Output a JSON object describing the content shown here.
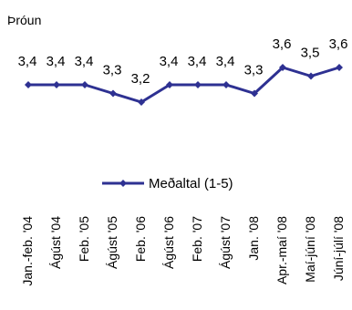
{
  "chart_data": {
    "type": "line",
    "title": "Þróun",
    "categories": [
      "Jan.-feb. '04",
      "Ágúst '04",
      "Feb. '05",
      "Ágúst '05",
      "Feb. '06",
      "Ágúst '06",
      "Feb. '07",
      "Ágúst '07",
      "Jan. '08",
      "Apr.-maí '08",
      "Maí-júní '08",
      "Júní-júlí '08"
    ],
    "series": [
      {
        "name": "Meðaltal (1-5)",
        "values": [
          3.4,
          3.4,
          3.4,
          3.3,
          3.2,
          3.4,
          3.4,
          3.4,
          3.3,
          3.6,
          3.5,
          3.6
        ],
        "labels": [
          "3,4",
          "3,4",
          "3,4",
          "3,3",
          "3,2",
          "3,4",
          "3,4",
          "3,4",
          "3,3",
          "3,6",
          "3,5",
          "3,6"
        ]
      }
    ],
    "ylim": [
      1,
      5
    ],
    "grid": false,
    "legend_position": "below plot",
    "colors": {
      "series": "#2e3192"
    }
  }
}
